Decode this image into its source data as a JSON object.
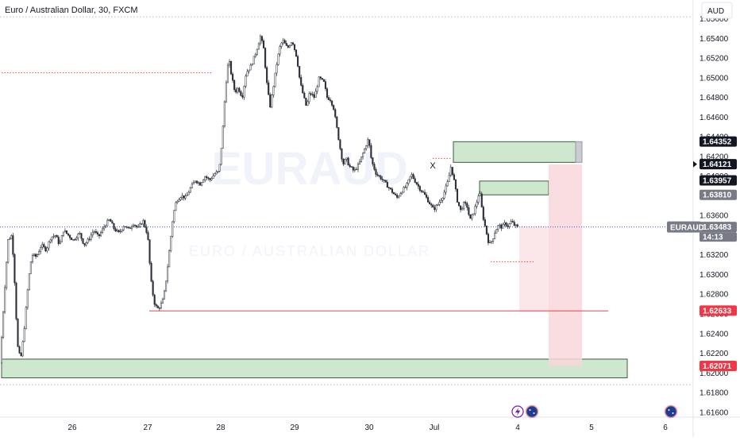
{
  "header": {
    "title": "Euro / Australian Dollar, 30, FXCM"
  },
  "currency_button": "AUD",
  "watermark": "EURAUD",
  "watermark_sub": "EURO / AUSTRALIAN DOLLAR",
  "symbol_badge": "EURAUD",
  "countdown": "14:13",
  "annotation": "X",
  "events": [
    {
      "icon": "lightning-icon",
      "color": "#7b1fa2"
    },
    {
      "icon": "australia-flag-icon",
      "color": "#1e3c96"
    },
    {
      "icon": "australia-flag-icon",
      "color": "#1e3c96"
    }
  ],
  "colors": {
    "up": "#2a2e39",
    "down": "#2a2e39",
    "zone_green_fill": "#c8e6c9",
    "zone_green_stroke": "#3d5c3f",
    "zone_red_fill": "#f8d7da",
    "red_line": "#e5484d",
    "current_line": "#4a5bdc",
    "tag_dark": "#131722",
    "tag_grey": "#787b86",
    "tag_red": "#f23645"
  },
  "price_tags": [
    {
      "label": "1.64352",
      "style": "dark"
    },
    {
      "label": "1.64121",
      "style": "dark"
    },
    {
      "label": "1.63957",
      "style": "dark"
    },
    {
      "label": "1.63810",
      "style": "grey"
    },
    {
      "label": "1.63483",
      "style": "grey"
    },
    {
      "label": "1.62633",
      "style": "red"
    },
    {
      "label": "1.62071",
      "style": "red"
    }
  ],
  "chart_data": {
    "type": "candlestick",
    "symbol": "EURAUD",
    "timeframe": "30",
    "ylim": [
      1.6155,
      1.6575
    ],
    "y_ticks": [
      "1.65600",
      "1.65400",
      "1.65200",
      "1.65000",
      "1.64800",
      "1.64600",
      "1.64400",
      "1.64200",
      "1.64000",
      "1.63800",
      "1.63600",
      "1.63400",
      "1.63200",
      "1.63000",
      "1.62800",
      "1.62600",
      "1.62400",
      "1.62200",
      "1.62000",
      "1.61800",
      "1.61600"
    ],
    "x_ticks": [
      "26",
      "27",
      "28",
      "29",
      "30",
      "Jul",
      "4",
      "5",
      "6"
    ],
    "price_path": [
      [
        0,
        1.621
      ],
      [
        5,
        1.6275
      ],
      [
        10,
        1.6335
      ],
      [
        15,
        1.634
      ],
      [
        18,
        1.63
      ],
      [
        22,
        1.6228
      ],
      [
        26,
        1.6213
      ],
      [
        30,
        1.624
      ],
      [
        36,
        1.6295
      ],
      [
        40,
        1.632
      ],
      [
        46,
        1.6318
      ],
      [
        52,
        1.633
      ],
      [
        58,
        1.6325
      ],
      [
        64,
        1.6338
      ],
      [
        70,
        1.634
      ],
      [
        75,
        1.633
      ],
      [
        80,
        1.6345
      ],
      [
        86,
        1.634
      ],
      [
        92,
        1.6335
      ],
      [
        100,
        1.6342
      ],
      [
        106,
        1.633
      ],
      [
        112,
        1.6336
      ],
      [
        118,
        1.6345
      ],
      [
        124,
        1.6338
      ],
      [
        132,
        1.635
      ],
      [
        138,
        1.6356
      ],
      [
        144,
        1.6346
      ],
      [
        150,
        1.6342
      ],
      [
        156,
        1.635
      ],
      [
        162,
        1.6346
      ],
      [
        168,
        1.6352
      ],
      [
        174,
        1.6347
      ],
      [
        180,
        1.6355
      ],
      [
        186,
        1.634
      ],
      [
        190,
        1.6295
      ],
      [
        194,
        1.6272
      ],
      [
        198,
        1.6265
      ],
      [
        202,
        1.6268
      ],
      [
        206,
        1.6276
      ],
      [
        210,
        1.63
      ],
      [
        214,
        1.633
      ],
      [
        218,
        1.636
      ],
      [
        222,
        1.6375
      ],
      [
        228,
        1.638
      ],
      [
        234,
        1.6378
      ],
      [
        240,
        1.6388
      ],
      [
        246,
        1.6396
      ],
      [
        252,
        1.6392
      ],
      [
        258,
        1.64
      ],
      [
        264,
        1.6396
      ],
      [
        270,
        1.6402
      ],
      [
        276,
        1.6405
      ],
      [
        280,
        1.644
      ],
      [
        284,
        1.649
      ],
      [
        288,
        1.652
      ],
      [
        292,
        1.65
      ],
      [
        296,
        1.6485
      ],
      [
        300,
        1.649
      ],
      [
        305,
        1.648
      ],
      [
        310,
        1.6505
      ],
      [
        316,
        1.6512
      ],
      [
        322,
        1.6525
      ],
      [
        328,
        1.6542
      ],
      [
        332,
        1.653
      ],
      [
        336,
        1.6495
      ],
      [
        340,
        1.647
      ],
      [
        344,
        1.649
      ],
      [
        348,
        1.6512
      ],
      [
        352,
        1.653
      ],
      [
        356,
        1.6538
      ],
      [
        362,
        1.653
      ],
      [
        368,
        1.6538
      ],
      [
        374,
        1.652
      ],
      [
        378,
        1.6495
      ],
      [
        382,
        1.6482
      ],
      [
        386,
        1.647
      ],
      [
        390,
        1.6485
      ],
      [
        396,
        1.648
      ],
      [
        402,
        1.65
      ],
      [
        408,
        1.6495
      ],
      [
        412,
        1.648
      ],
      [
        416,
        1.6478
      ],
      [
        420,
        1.647
      ],
      [
        424,
        1.645
      ],
      [
        428,
        1.643
      ],
      [
        432,
        1.6412
      ],
      [
        436,
        1.6418
      ],
      [
        440,
        1.641
      ],
      [
        446,
        1.6405
      ],
      [
        452,
        1.6412
      ],
      [
        458,
        1.6425
      ],
      [
        464,
        1.6438
      ],
      [
        468,
        1.6415
      ],
      [
        474,
        1.6402
      ],
      [
        480,
        1.6398
      ],
      [
        486,
        1.6392
      ],
      [
        490,
        1.6388
      ],
      [
        496,
        1.6382
      ],
      [
        500,
        1.6378
      ],
      [
        506,
        1.6385
      ],
      [
        512,
        1.639
      ],
      [
        518,
        1.6402
      ],
      [
        522,
        1.6396
      ],
      [
        528,
        1.6388
      ],
      [
        534,
        1.6382
      ],
      [
        540,
        1.6374
      ],
      [
        546,
        1.6366
      ],
      [
        552,
        1.6372
      ],
      [
        558,
        1.638
      ],
      [
        564,
        1.6394
      ],
      [
        568,
        1.641
      ],
      [
        572,
        1.6395
      ],
      [
        576,
        1.6375
      ],
      [
        580,
        1.6365
      ],
      [
        584,
        1.6372
      ],
      [
        588,
        1.637
      ],
      [
        592,
        1.6355
      ],
      [
        596,
        1.6362
      ],
      [
        600,
        1.6372
      ],
      [
        604,
        1.6385
      ],
      [
        608,
        1.636
      ],
      [
        612,
        1.6345
      ],
      [
        616,
        1.633
      ],
      [
        620,
        1.6335
      ],
      [
        624,
        1.6345
      ],
      [
        628,
        1.635
      ],
      [
        632,
        1.6348
      ],
      [
        636,
        1.6352
      ],
      [
        640,
        1.6349
      ],
      [
        644,
        1.6354
      ],
      [
        648,
        1.635
      ],
      [
        652,
        1.6348
      ]
    ]
  },
  "zones": [
    {
      "type": "green",
      "x1": 2,
      "x2": 790,
      "top": 1.6214,
      "bottom": 1.6195
    },
    {
      "type": "green",
      "x1": 571,
      "x2": 725,
      "top": 1.6435,
      "bottom": 1.6414
    },
    {
      "type": "grey",
      "x1": 725,
      "x2": 733,
      "top": 1.6435,
      "bottom": 1.6414
    },
    {
      "type": "green",
      "x1": 604,
      "x2": 691,
      "top": 1.6395,
      "bottom": 1.6381
    },
    {
      "type": "red",
      "x1": 691,
      "x2": 733,
      "top": 1.6412,
      "bottom": 1.6207
    },
    {
      "type": "redlight",
      "x1": 654,
      "x2": 691,
      "top": 1.6349,
      "bottom": 1.6262
    }
  ],
  "lines": [
    {
      "kind": "red-solid",
      "x1": 188,
      "x2": 766,
      "price": 1.6263
    },
    {
      "kind": "red-dotted",
      "x1": 2,
      "x2": 266,
      "price": 1.6505
    },
    {
      "kind": "red-dotted",
      "x1": 618,
      "x2": 672,
      "price": 1.6313
    },
    {
      "kind": "red-dotted",
      "x1": 545,
      "x2": 568,
      "price": 1.6418
    },
    {
      "kind": "grey-dotted",
      "x1": 0,
      "x2": 872,
      "price": 1.6562
    },
    {
      "kind": "grey-dotted",
      "x1": 0,
      "x2": 872,
      "price": 1.6188
    },
    {
      "kind": "current",
      "x1": 0,
      "x2": 872,
      "price": 1.63483
    }
  ]
}
